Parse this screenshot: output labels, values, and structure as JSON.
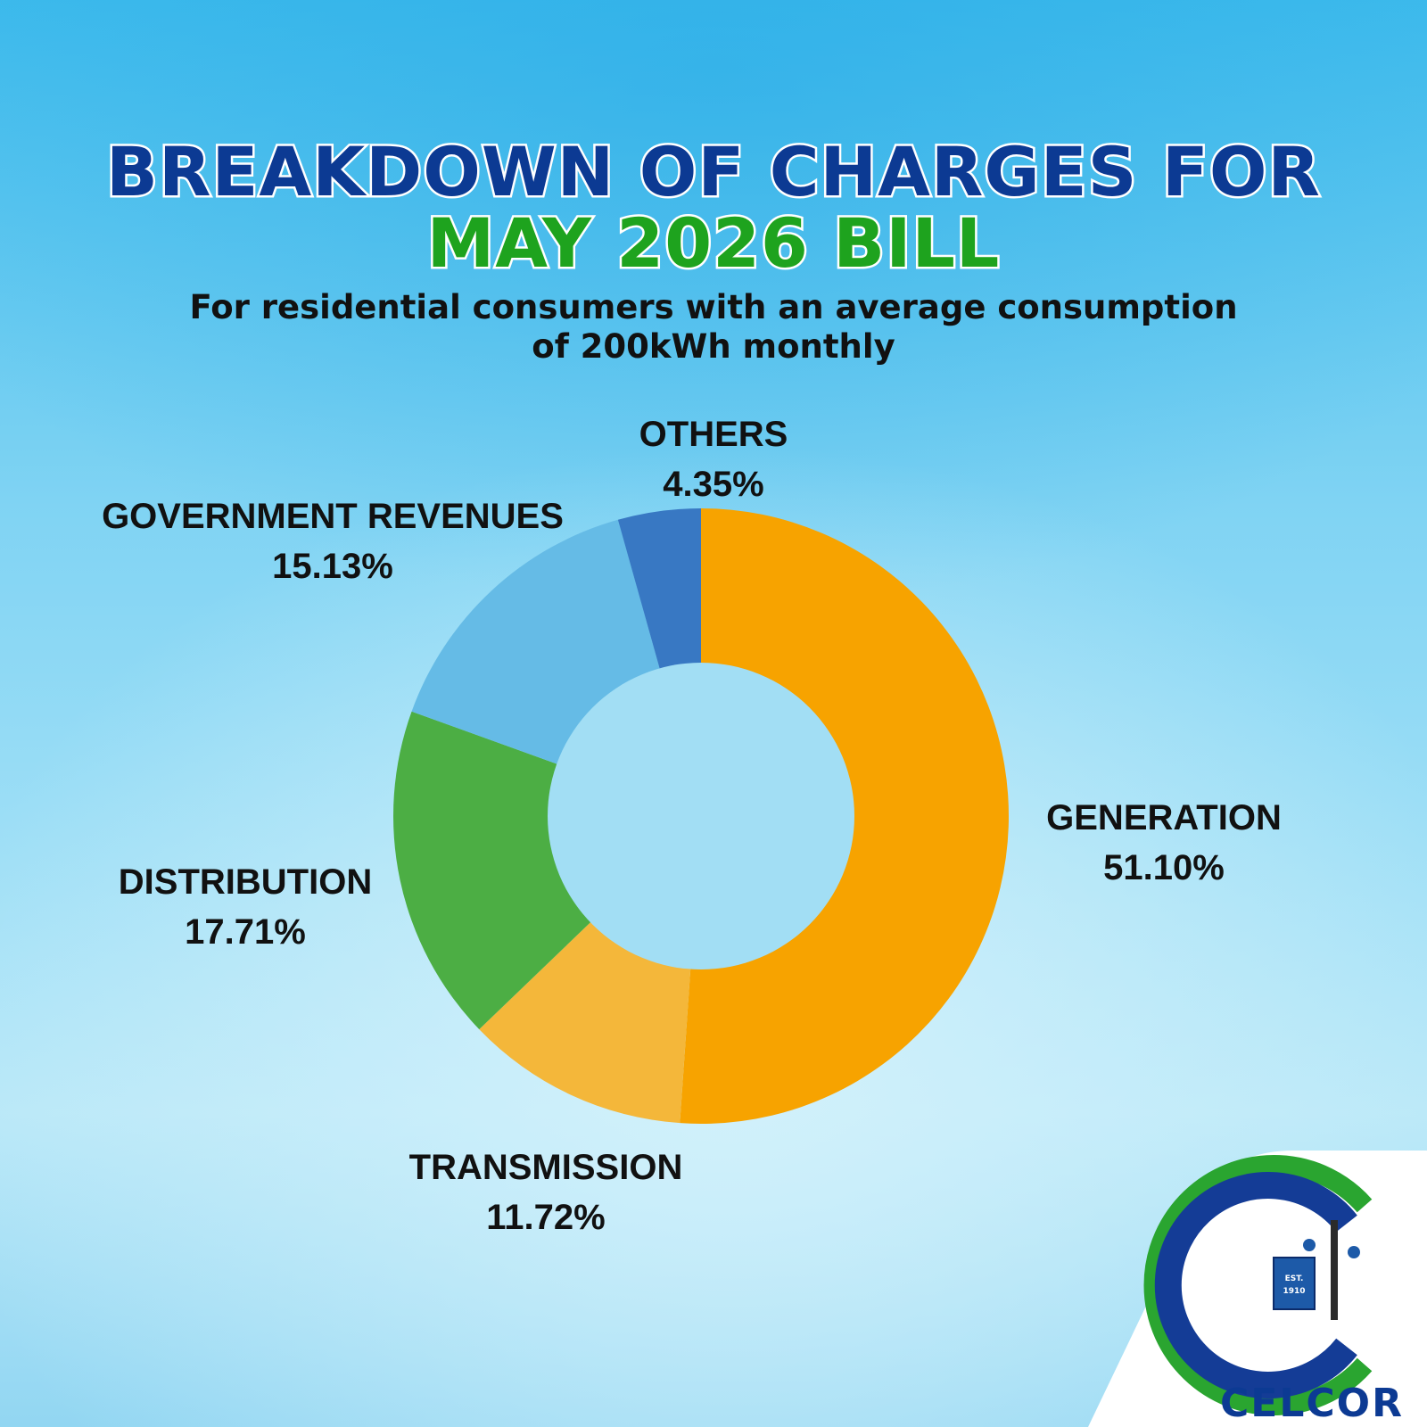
{
  "header": {
    "title_line1": "BREAKDOWN OF CHARGES FOR",
    "title_line2": "MAY 2026 BILL",
    "subtitle_line1": "For residential consumers with an average consumption",
    "subtitle_line2": "of 200kWh monthly"
  },
  "colors": {
    "title_blue": "#0c3a93",
    "title_green": "#1ea31e"
  },
  "chart_data": {
    "type": "pie",
    "title": "BREAKDOWN OF CHARGES FOR MAY 2026 BILL",
    "donut": true,
    "start_direction": "top, clockwise",
    "unit": "%",
    "slices": [
      {
        "name": "GENERATION",
        "value": 51.1,
        "label": "51.10%",
        "color": "#f7a300"
      },
      {
        "name": "TRANSMISSION",
        "value": 11.72,
        "label": "11.72%",
        "color": "#f4b73a"
      },
      {
        "name": "DISTRIBUTION",
        "value": 17.71,
        "label": "17.71%",
        "color": "#4cae44"
      },
      {
        "name": "GOVERNMENT REVENUES",
        "value": 15.13,
        "label": "15.13%",
        "color": "#65bbe6"
      },
      {
        "name": "OTHERS",
        "value": 4.35,
        "label": "4.35%",
        "color": "#3878c3"
      }
    ]
  },
  "logo": {
    "brand": "CELCOR",
    "badge_line1": "EST.",
    "badge_line2": "1910"
  }
}
